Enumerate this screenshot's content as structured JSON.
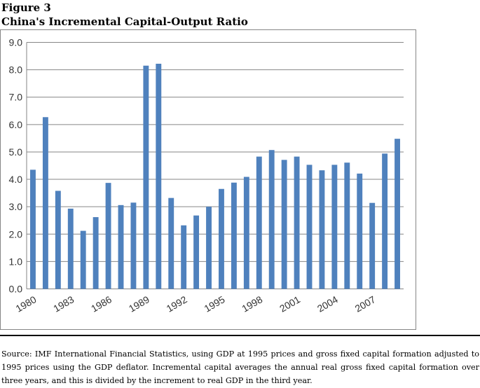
{
  "figure": {
    "label": "Figure 3",
    "title": "China's Incremental Capital-Output Ratio",
    "source": "Source:  IMF International Financial Statistics, using GDP at 1995 prices and gross fixed capital formation adjusted to 1995 prices using the GDP deflator.  Incremental capital averages the annual real gross fixed capital formation over three years, and this is divided by the increment to real GDP in the third year."
  },
  "colors": {
    "bar": "#4f81bd",
    "grid": "#868686",
    "frame": "#868686"
  },
  "chart_data": {
    "type": "bar",
    "title": "China's Incremental Capital-Output Ratio",
    "xlabel": "",
    "ylabel": "",
    "ylim": [
      0,
      9
    ],
    "yticks": [
      "0.0",
      "1.0",
      "2.0",
      "3.0",
      "4.0",
      "5.0",
      "6.0",
      "7.0",
      "8.0",
      "9.0"
    ],
    "grid": true,
    "legend": "none",
    "categories": [
      "1980",
      "1981",
      "1982",
      "1983",
      "1984",
      "1985",
      "1986",
      "1987",
      "1988",
      "1989",
      "1990",
      "1991",
      "1992",
      "1993",
      "1994",
      "1995",
      "1996",
      "1997",
      "1998",
      "1999",
      "2000",
      "2001",
      "2002",
      "2003",
      "2004",
      "2005",
      "2006",
      "2007",
      "2008",
      "2009"
    ],
    "xtick_labels": [
      "1980",
      "",
      "",
      "1983",
      "",
      "",
      "1986",
      "",
      "",
      "1989",
      "",
      "",
      "1992",
      "",
      "",
      "1995",
      "",
      "",
      "1998",
      "",
      "",
      "2001",
      "",
      "",
      "2004",
      "",
      "",
      "2007",
      "",
      ""
    ],
    "values": [
      4.35,
      6.27,
      3.58,
      2.93,
      2.12,
      2.62,
      3.87,
      3.06,
      3.15,
      8.15,
      8.22,
      3.32,
      2.32,
      2.68,
      3.0,
      3.65,
      3.88,
      4.09,
      4.83,
      5.07,
      4.71,
      4.83,
      4.53,
      4.33,
      4.53,
      4.61,
      4.21,
      3.14,
      4.94,
      5.48
    ]
  }
}
